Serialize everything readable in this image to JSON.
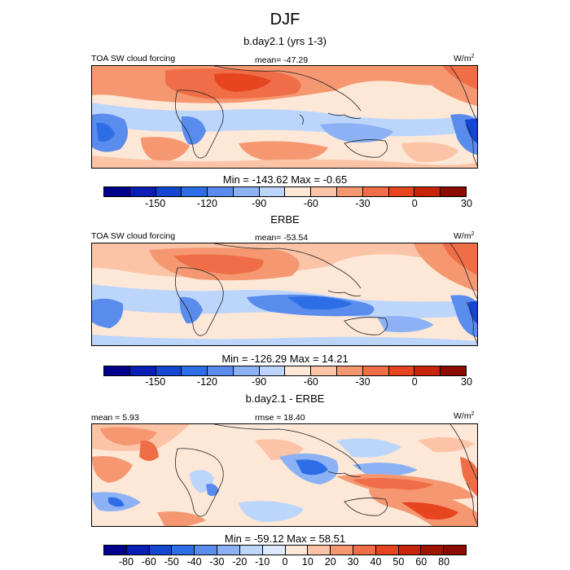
{
  "title": "DJF",
  "panels": [
    {
      "title": "b.day2.1 (yrs 1-3)",
      "left_label": "TOA SW cloud forcing",
      "center_label": "mean= -47.29",
      "units_base": "W/m",
      "units_exp": "2",
      "minmax": "Min = -143.62 Max =  -0.65",
      "scale": "abs"
    },
    {
      "title": "ERBE",
      "left_label": "TOA SW cloud forcing",
      "center_label": "mean= -53.54",
      "units_base": "W/m",
      "units_exp": "2",
      "minmax": "Min = -126.29 Max =  14.21",
      "scale": "abs"
    },
    {
      "title": "b.day2.1 - ERBE",
      "left_label": "mean =   5.93",
      "center_label": "rmse =  18.40",
      "units_base": "W/m",
      "units_exp": "2",
      "minmax": "Min = -59.12 Max =  58.51",
      "scale": "diff"
    }
  ],
  "colorbars": {
    "abs": {
      "colors": [
        "#00008c",
        "#0a1eb4",
        "#1446d2",
        "#2d6ee6",
        "#5a8ced",
        "#8cb2f5",
        "#bcd5fa",
        "#fde8d8",
        "#fcc4a6",
        "#f59872",
        "#ef6e47",
        "#e74420",
        "#c8240a",
        "#8c0a00"
      ],
      "labels": [
        "-150",
        "-120",
        "-90",
        "-60",
        "-30",
        "0",
        "30"
      ],
      "label_positions": [
        2,
        4,
        6,
        8,
        10,
        12,
        14
      ]
    },
    "diff": {
      "colors": [
        "#00008c",
        "#0a1eb4",
        "#1446d2",
        "#2d6ee6",
        "#5a8ced",
        "#8cb2f5",
        "#bcd5fa",
        "#dde9fc",
        "#fde8d8",
        "#fcc4a6",
        "#f59872",
        "#ef6e47",
        "#e74420",
        "#c8240a",
        "#a01400",
        "#8c0a00"
      ],
      "labels": [
        "-80",
        "-60",
        "-50",
        "-40",
        "-30",
        "-20",
        "-10",
        "0",
        "10",
        "20",
        "30",
        "40",
        "50",
        "60",
        "80"
      ],
      "label_positions": [
        1,
        2,
        3,
        4,
        5,
        6,
        7,
        8,
        9,
        10,
        11,
        12,
        13,
        14,
        15
      ]
    }
  }
}
